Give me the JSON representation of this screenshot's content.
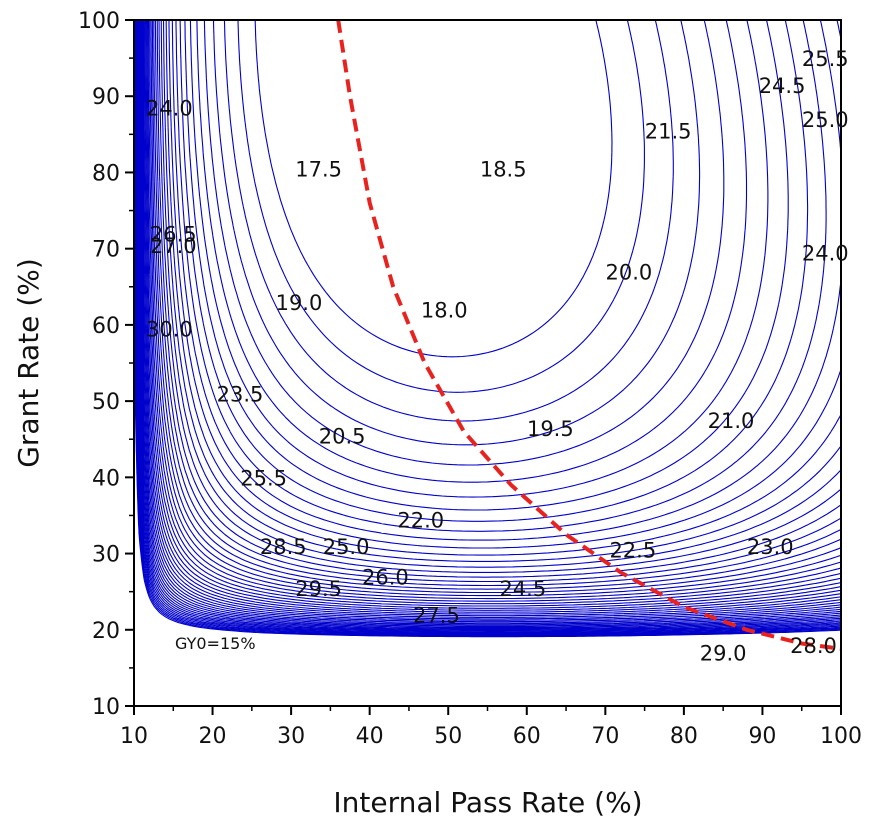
{
  "chart_data": {
    "type": "contour",
    "xlabel": "Internal Pass Rate (%)",
    "ylabel": "Grant Rate (%)",
    "xlim": [
      10,
      100
    ],
    "ylim": [
      10,
      100
    ],
    "x_ticks": [
      10,
      20,
      30,
      40,
      50,
      60,
      70,
      80,
      90,
      100
    ],
    "y_ticks": [
      10,
      20,
      30,
      40,
      50,
      60,
      70,
      80,
      90,
      100
    ],
    "annotation": "GY0=15%",
    "contour_color": "#0000cc",
    "optimum_curve_color": "#e8231f",
    "optimum_curve": {
      "x": [
        36,
        37.5,
        40,
        43,
        47,
        52,
        58,
        65,
        72,
        80,
        88,
        95,
        100
      ],
      "y": [
        100,
        90,
        76,
        65,
        55,
        46,
        39,
        32.5,
        27.5,
        23,
        20,
        18.2,
        17.5
      ]
    },
    "contour_labels": [
      {
        "text": "25.5",
        "x": 98,
        "y": 95
      },
      {
        "text": "24.5",
        "x": 92.5,
        "y": 91.5
      },
      {
        "text": "25.0",
        "x": 98,
        "y": 87
      },
      {
        "text": "21.5",
        "x": 78,
        "y": 85.5
      },
      {
        "text": "24.0",
        "x": 14.5,
        "y": 88.5
      },
      {
        "text": "17.5",
        "x": 33.5,
        "y": 80.5
      },
      {
        "text": "18.5",
        "x": 57,
        "y": 80.5
      },
      {
        "text": "26.5",
        "x": 15,
        "y": 72
      },
      {
        "text": "27.0",
        "x": 15,
        "y": 70.5
      },
      {
        "text": "20.0",
        "x": 73,
        "y": 67
      },
      {
        "text": "24.0",
        "x": 98,
        "y": 69.5
      },
      {
        "text": "19.0",
        "x": 31,
        "y": 63
      },
      {
        "text": "18.0",
        "x": 49.5,
        "y": 62
      },
      {
        "text": "30.0",
        "x": 14.5,
        "y": 59.5
      },
      {
        "text": "23.5",
        "x": 23.5,
        "y": 51
      },
      {
        "text": "20.5",
        "x": 36.5,
        "y": 45.5
      },
      {
        "text": "19.5",
        "x": 63,
        "y": 46.5
      },
      {
        "text": "21.0",
        "x": 86,
        "y": 47.5
      },
      {
        "text": "25.5",
        "x": 26.5,
        "y": 40
      },
      {
        "text": "22.0",
        "x": 46.5,
        "y": 34.5
      },
      {
        "text": "28.5",
        "x": 29,
        "y": 31
      },
      {
        "text": "25.0",
        "x": 37,
        "y": 31
      },
      {
        "text": "22.5",
        "x": 73.5,
        "y": 30.5
      },
      {
        "text": "23.0",
        "x": 91,
        "y": 31
      },
      {
        "text": "26.0",
        "x": 42,
        "y": 27
      },
      {
        "text": "29.5",
        "x": 33.5,
        "y": 25.5
      },
      {
        "text": "24.5",
        "x": 59.5,
        "y": 25.5
      },
      {
        "text": "27.5",
        "x": 48.5,
        "y": 22
      },
      {
        "text": "29.0",
        "x": 85,
        "y": 17
      },
      {
        "text": "28.0",
        "x": 96.5,
        "y": 18
      }
    ]
  }
}
